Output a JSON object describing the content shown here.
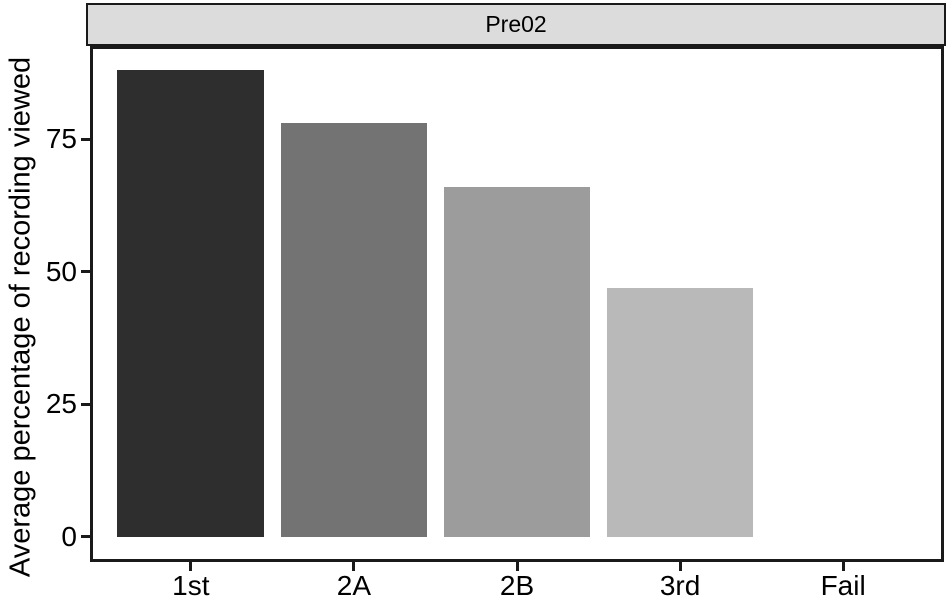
{
  "figure": {
    "facet_label": "Pre02",
    "y_axis_title": "Average percentage of recording viewed"
  },
  "chart_data": {
    "type": "bar",
    "title": "Pre02",
    "xlabel": "",
    "ylabel": "Average percentage of recording viewed",
    "categories": [
      "1st",
      "2A",
      "2B",
      "3rd",
      "Fail"
    ],
    "values": [
      88,
      78,
      66,
      47,
      0
    ],
    "bar_colors": [
      "#2e2e2e",
      "#737373",
      "#9c9c9c",
      "#b9b9b9",
      "#d2d2d2"
    ],
    "yticks": [
      0,
      25,
      50,
      75
    ],
    "ylim": [
      -4.2,
      92
    ],
    "grid": "off",
    "legend": "none",
    "strip_background": "#dcdcdc",
    "panel_border_color": "#1a1a1a",
    "text_color": "#000000"
  }
}
